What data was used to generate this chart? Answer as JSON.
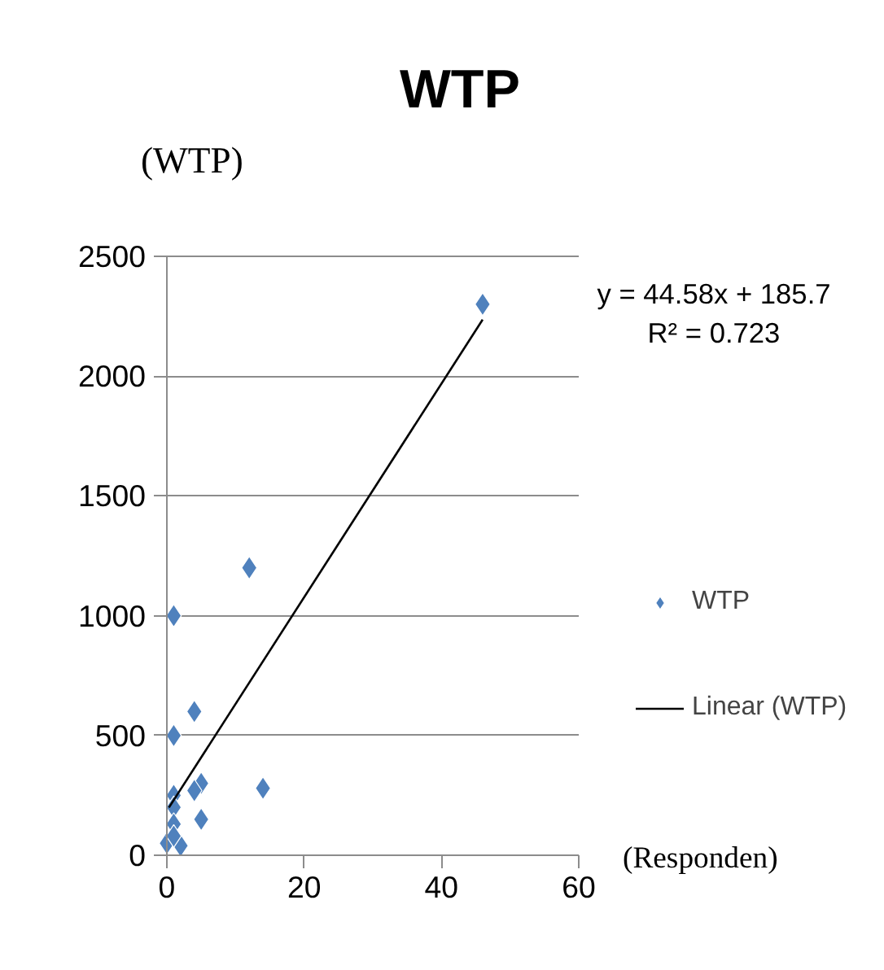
{
  "chart_data": {
    "type": "scatter",
    "title": "WTP",
    "ylabel": "(WTP)",
    "xlabel": "(Responden)",
    "xlim": [
      0,
      60
    ],
    "xticks": [
      0,
      20,
      40,
      60
    ],
    "ylim": [
      0,
      2500
    ],
    "yticks": [
      0,
      500,
      1000,
      1500,
      2000,
      2500
    ],
    "grid": "y",
    "legend": "right",
    "annotations": [
      "y = 44.58x + 185.7\nR² = 0.723"
    ],
    "series": [
      {
        "name": "WTP",
        "color": "#4f81bd",
        "marker": "diamond",
        "x": [
          46,
          12,
          1,
          4,
          1,
          14,
          5,
          4,
          1,
          1,
          5,
          1,
          0,
          2,
          1
        ],
        "values": [
          2300,
          1200,
          1000,
          600,
          500,
          280,
          300,
          270,
          250,
          200,
          150,
          130,
          50,
          40,
          80
        ]
      },
      {
        "name": "Linear (WTP)",
        "type": "line",
        "color": "#000000",
        "x": [
          0.3,
          46
        ],
        "values": [
          199,
          2236
        ]
      }
    ]
  }
}
